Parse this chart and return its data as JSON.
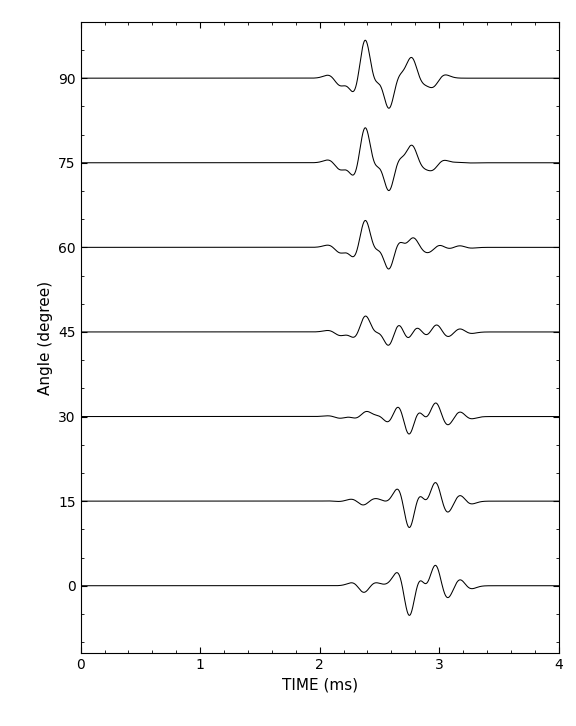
{
  "angles": [
    0,
    15,
    30,
    45,
    60,
    75,
    90
  ],
  "t_start": 0,
  "t_end": 4,
  "n_points": 4000,
  "xlabel": "TIME (ms)",
  "ylabel": "Angle (degree)",
  "xlim": [
    0,
    4
  ],
  "ylim": [
    -12,
    100
  ],
  "xticks": [
    0,
    1,
    2,
    3,
    4
  ],
  "background_color": "#ffffff",
  "line_color": "#000000",
  "amplitude_scale": 6.5,
  "figure_width": 5.76,
  "figure_height": 7.26,
  "dpi": 100,
  "t0_base": 2.25,
  "sigma": 0.085
}
